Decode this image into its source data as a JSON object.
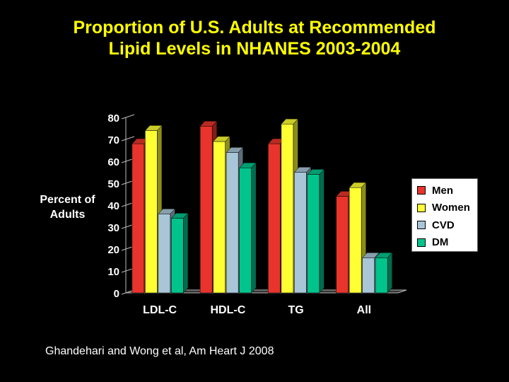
{
  "title_lines": [
    "Proportion of U.S. Adults at Recommended",
    "Lipid Levels in NHANES 2003-2004"
  ],
  "source": "Ghandehari and Wong et al, Am Heart J 2008",
  "colors": {
    "title": "#ffff00",
    "Men": "#e8342c",
    "Women": "#ffff33",
    "CVD": "#a9c6d8",
    "DM": "#00c48c"
  },
  "chart_data": {
    "type": "bar",
    "title": "Proportion of U.S. Adults at Recommended Lipid Levels in NHANES 2003-2004",
    "xlabel": "",
    "ylabel": "Percent of Adults",
    "categories": [
      "LDL-C",
      "HDL-C",
      "TG",
      "All"
    ],
    "series": [
      {
        "name": "Men",
        "values": [
          68,
          76,
          68,
          44
        ]
      },
      {
        "name": "Women",
        "values": [
          74,
          69,
          77,
          48
        ]
      },
      {
        "name": "CVD",
        "values": [
          36,
          64,
          55,
          16
        ]
      },
      {
        "name": "DM",
        "values": [
          34,
          57,
          54,
          16
        ]
      }
    ],
    "ylim": [
      0,
      80
    ],
    "yticks": [
      "0",
      "10",
      "20",
      "30",
      "40",
      "50",
      "60",
      "70",
      "80"
    ],
    "legend": "right",
    "grid": false,
    "style": "3d"
  }
}
